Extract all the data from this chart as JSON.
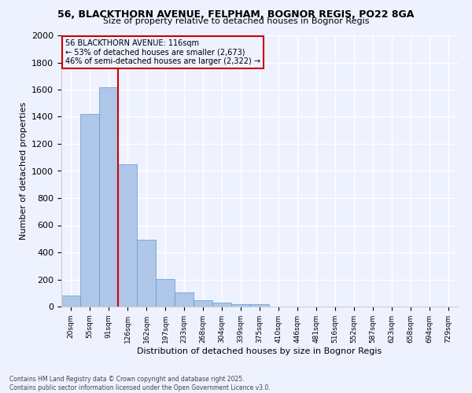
{
  "title1": "56, BLACKTHORN AVENUE, FELPHAM, BOGNOR REGIS, PO22 8GA",
  "title2": "Size of property relative to detached houses in Bognor Regis",
  "xlabel": "Distribution of detached houses by size in Bognor Regis",
  "ylabel": "Number of detached properties",
  "categories": [
    "20sqm",
    "55sqm",
    "91sqm",
    "126sqm",
    "162sqm",
    "197sqm",
    "233sqm",
    "268sqm",
    "304sqm",
    "339sqm",
    "375sqm",
    "410sqm",
    "446sqm",
    "481sqm",
    "516sqm",
    "552sqm",
    "587sqm",
    "623sqm",
    "658sqm",
    "694sqm",
    "729sqm"
  ],
  "values": [
    80,
    1420,
    1620,
    1050,
    490,
    205,
    105,
    45,
    30,
    20,
    20,
    0,
    0,
    0,
    0,
    0,
    0,
    0,
    0,
    0,
    0
  ],
  "bar_color": "#aec6e8",
  "bar_edge_color": "#5b9bd5",
  "vline_color": "#cc0000",
  "annotation_line1": "56 BLACKTHORN AVENUE: 116sqm",
  "annotation_line2": "← 53% of detached houses are smaller (2,673)",
  "annotation_line3": "46% of semi-detached houses are larger (2,322) →",
  "ylim": [
    0,
    2000
  ],
  "yticks": [
    0,
    200,
    400,
    600,
    800,
    1000,
    1200,
    1400,
    1600,
    1800,
    2000
  ],
  "background_color": "#eef2ff",
  "grid_color": "#ffffff",
  "footer1": "Contains HM Land Registry data © Crown copyright and database right 2025.",
  "footer2": "Contains public sector information licensed under the Open Government Licence v3.0."
}
